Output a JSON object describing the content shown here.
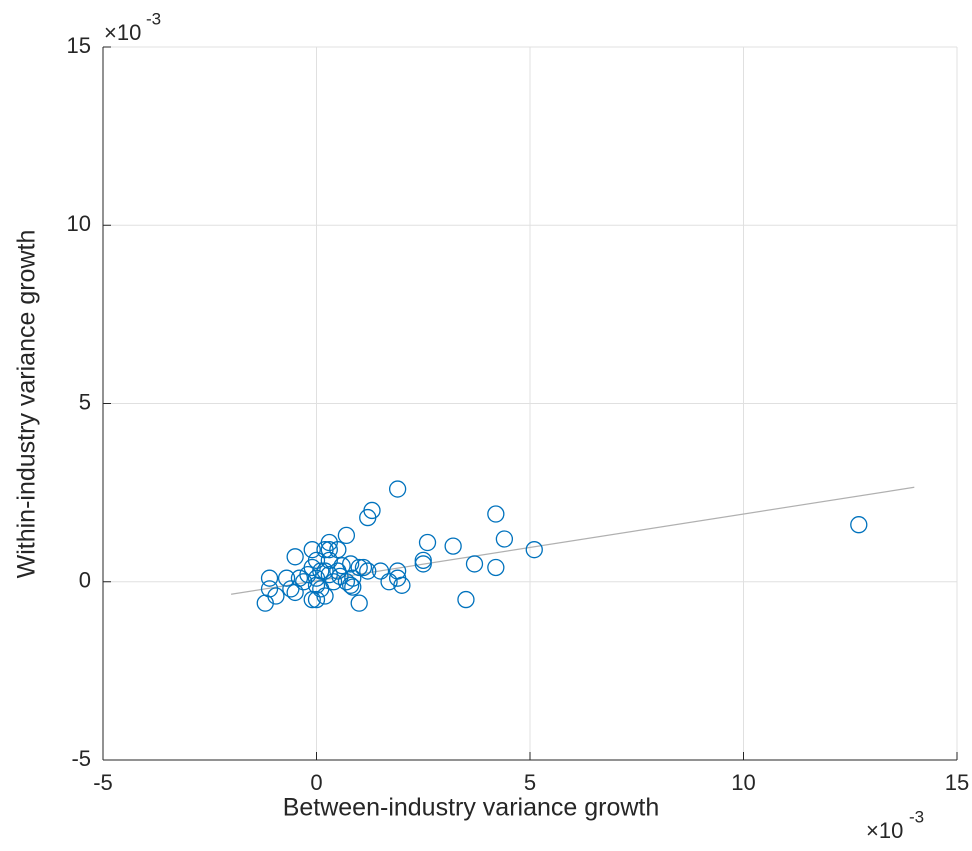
{
  "chart_data": {
    "type": "scatter",
    "xlabel": "Between-industry variance growth",
    "ylabel": "Within-industry variance growth",
    "x_multiplier": {
      "base": "×10",
      "exponent": "-3"
    },
    "y_multiplier": {
      "base": "×10",
      "exponent": "-3"
    },
    "xlim": [
      -5,
      15
    ],
    "ylim": [
      -5,
      15
    ],
    "xticks": [
      -5,
      0,
      5,
      10,
      15
    ],
    "yticks": [
      -5,
      0,
      5,
      10,
      15
    ],
    "grid": true,
    "series": [
      {
        "color": "#0072bd",
        "x": [
          12.7,
          5.1,
          4.4,
          4.2,
          4.2,
          3.5,
          3.7,
          3.2,
          2.6,
          2.5,
          2.5,
          1.9,
          1.3,
          1.2,
          1.0,
          0.7,
          2.0,
          1.9,
          1.9,
          1.7,
          1.5,
          1.2,
          1.1,
          1.0,
          0.8,
          0.8,
          0.7,
          0.55,
          0.5,
          0.3,
          0.3,
          0.2,
          -0.1,
          0.3,
          0.0,
          -0.5,
          -1.2,
          -1.1,
          -1.1,
          -0.95,
          -0.7,
          -0.6,
          -0.5,
          -0.3,
          -0.2,
          -0.1,
          0.0,
          0.2,
          0.1,
          0.0,
          0.0,
          0.1,
          0.2,
          -0.1,
          0.3,
          0.4,
          0.5,
          0.6,
          0.85,
          0.85,
          -0.4
        ],
        "y": [
          1.6,
          0.9,
          1.2,
          1.9,
          0.4,
          -0.5,
          0.5,
          1.0,
          1.1,
          0.6,
          0.5,
          2.6,
          2.0,
          1.8,
          -0.6,
          1.3,
          -0.1,
          0.1,
          0.3,
          0.0,
          0.3,
          0.3,
          0.4,
          0.4,
          0.5,
          -0.1,
          0.0,
          0.15,
          0.9,
          1.1,
          0.9,
          0.9,
          0.9,
          0.6,
          0.6,
          0.7,
          -0.6,
          0.1,
          -0.2,
          -0.4,
          0.1,
          -0.2,
          -0.3,
          0.0,
          0.2,
          -0.5,
          -0.5,
          -0.4,
          -0.2,
          -0.1,
          0.1,
          0.3,
          0.3,
          0.4,
          0.2,
          0.0,
          0.3,
          0.45,
          0.1,
          -0.15,
          0.1
        ]
      }
    ],
    "fit_line": {
      "color": "#b0b0b0",
      "x": [
        -2,
        14
      ],
      "y": [
        -0.35,
        2.65
      ]
    }
  }
}
